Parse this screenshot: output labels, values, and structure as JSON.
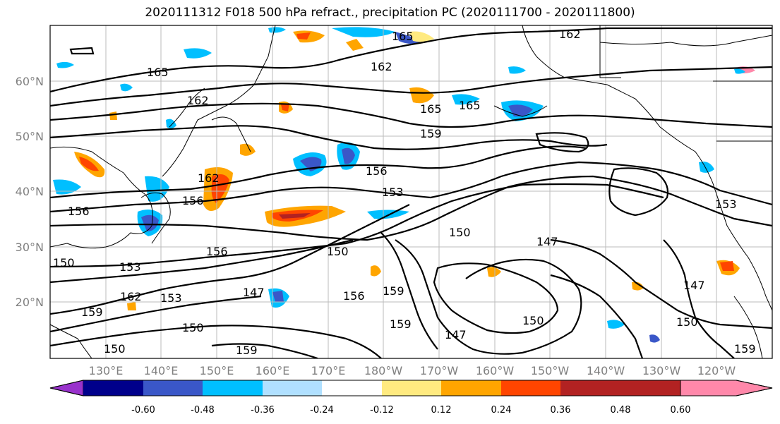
{
  "title": "2020111312 F018 500 hPa refract., precipitation PC (2020111700 - 2020111800)",
  "lat_labels": [
    "20°N",
    "30°N",
    "40°N",
    "50°N",
    "60°N"
  ],
  "lon_labels": [
    "130°E",
    "140°E",
    "150°E",
    "160°E",
    "170°E",
    "180°W",
    "170°W",
    "160°W",
    "150°W",
    "140°W",
    "130°W",
    "120°W"
  ],
  "colorbar": {
    "colors": [
      "#9932cc",
      "#00008b",
      "#3a57c8",
      "#00bfff",
      "#b0e0ff",
      "#ffffff",
      "#ffea80",
      "#ffa500",
      "#ff4500",
      "#b22222",
      "#ff88aa"
    ],
    "tick_labels": [
      "-0.60",
      "-0.48",
      "-0.36",
      "-0.24",
      "-0.12",
      "0.12",
      "0.24",
      "0.36",
      "0.48",
      "0.60"
    ]
  },
  "contour_labels": [
    "165",
    "162",
    "162",
    "165",
    "159",
    "165",
    "162",
    "165",
    "156",
    "162",
    "156",
    "153",
    "156",
    "150",
    "153",
    "150",
    "147",
    "153",
    "147",
    "150",
    "162",
    "159",
    "153",
    "150",
    "156",
    "159",
    "159",
    "147",
    "159",
    "150",
    "156",
    "150",
    "159",
    "147",
    "150"
  ]
}
